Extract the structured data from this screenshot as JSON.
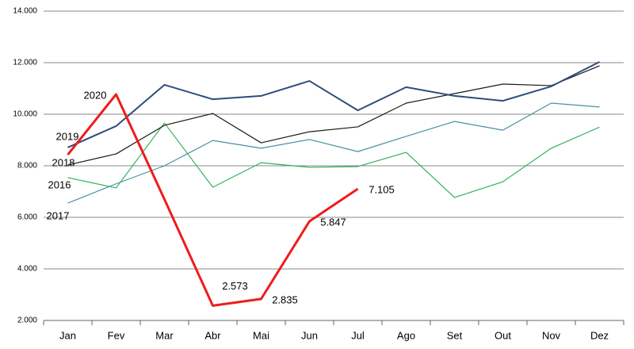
{
  "chart_data": {
    "type": "line",
    "categories": [
      "Jan",
      "Fev",
      "Mar",
      "Abr",
      "Mai",
      "Jun",
      "Jul",
      "Ago",
      "Set",
      "Out",
      "Nov",
      "Dez"
    ],
    "series": [
      {
        "name": "2016",
        "color": "#2db35a",
        "values": [
          7540,
          7140,
          9660,
          7170,
          8120,
          7940,
          7970,
          8520,
          6770,
          7380,
          8680,
          9500
        ]
      },
      {
        "name": "2017",
        "color": "#4a90a0",
        "values": [
          6550,
          7300,
          8000,
          8980,
          8680,
          9020,
          8550,
          9140,
          9720,
          9380,
          10430,
          10280
        ]
      },
      {
        "name": "2018",
        "color": "#1a1a1a",
        "values": [
          8030,
          8460,
          9570,
          10030,
          8890,
          9320,
          9510,
          10430,
          10800,
          11170,
          11110,
          11880
        ]
      },
      {
        "name": "2019",
        "color": "#2e4d7b",
        "values": [
          8710,
          9540,
          11140,
          10580,
          10710,
          11290,
          10150,
          11050,
          10710,
          10520,
          11080,
          12030
        ]
      },
      {
        "name": "2020",
        "color": "#ee1c1c",
        "values": [
          8430,
          10770,
          6700,
          2573,
          2835,
          5847,
          7105,
          null,
          null,
          null,
          null,
          null
        ],
        "value_labels": [
          null,
          null,
          null,
          "2.573",
          "2.835",
          "5.847",
          "7.105",
          null,
          null,
          null,
          null,
          null
        ]
      }
    ],
    "ylim": [
      2000,
      14000
    ],
    "yticks": [
      {
        "value": 2000,
        "label": "2.000"
      },
      {
        "value": 4000,
        "label": "4.000"
      },
      {
        "value": 6000,
        "label": "6.000"
      },
      {
        "value": 8000,
        "label": "8.000"
      },
      {
        "value": 10000,
        "label": "10.000"
      },
      {
        "value": 12000,
        "label": "12.000"
      },
      {
        "value": 14000,
        "label": "14.000"
      }
    ],
    "grid": true
  }
}
